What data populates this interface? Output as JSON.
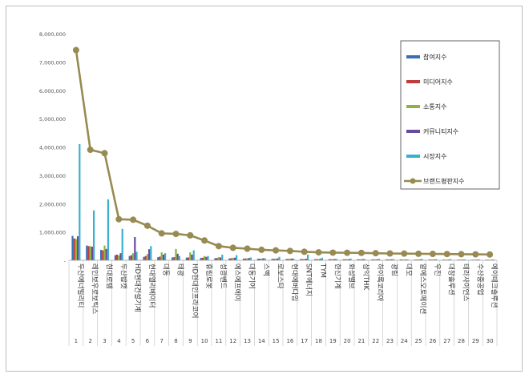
{
  "chart_data": {
    "type": "bar",
    "categories": [
      "두산에너빌리티",
      "레인보우로보틱스",
      "현대로템",
      "두산밥캣",
      "HD현대건설기계",
      "현대엘리베이터",
      "대동",
      "태광",
      "HD현대인프라코어",
      "휴림로봇",
      "성광벤드",
      "에스에프에이",
      "대동기어",
      "스맥",
      "로보스타",
      "현대에버다임",
      "SNT에너지",
      "TYM",
      "한신기계",
      "화성밸브",
      "삼익THK",
      "하이록코리아",
      "광림",
      "대모",
      "알에스오토메이션",
      "우진",
      "대창솔루션",
      "테라사이언스",
      "수산중공업",
      "에이테크솔루션"
    ],
    "ranks": [
      "1",
      "2",
      "3",
      "4",
      "5",
      "6",
      "7",
      "8",
      "9",
      "10",
      "11",
      "12",
      "13",
      "14",
      "15",
      "16",
      "17",
      "18",
      "19",
      "20",
      "21",
      "22",
      "23",
      "24",
      "25",
      "26",
      "27",
      "28",
      "29",
      "30"
    ],
    "y_ticks": [
      "-",
      "1,000,000",
      "2,000,000",
      "3,000,000",
      "4,000,000",
      "5,000,000",
      "6,000,000",
      "7,000,000",
      "8,000,000"
    ],
    "ylim": [
      0,
      8000000
    ],
    "series": [
      {
        "name": "참여지수",
        "color": "#3a6fb8",
        "values": [
          860000,
          520000,
          370000,
          180000,
          150000,
          120000,
          110000,
          100000,
          95000,
          85000,
          75000,
          65000,
          60000,
          55000,
          50000,
          45000,
          45000,
          40000,
          40000,
          35000,
          35000,
          30000,
          30000,
          30000,
          25000,
          25000,
          25000,
          20000,
          20000,
          20000
        ]
      },
      {
        "name": "미디어지수",
        "color": "#c23b3b",
        "values": [
          770000,
          500000,
          350000,
          200000,
          180000,
          150000,
          130000,
          110000,
          100000,
          90000,
          80000,
          70000,
          60000,
          55000,
          50000,
          45000,
          40000,
          40000,
          35000,
          35000,
          30000,
          30000,
          30000,
          25000,
          25000,
          25000,
          20000,
          20000,
          20000,
          20000
        ]
      },
      {
        "name": "소통지수",
        "color": "#8db43e",
        "values": [
          750000,
          500000,
          520000,
          170000,
          250000,
          220000,
          280000,
          400000,
          280000,
          150000,
          110000,
          90000,
          70000,
          60000,
          60000,
          55000,
          50000,
          45000,
          45000,
          40000,
          40000,
          35000,
          35000,
          30000,
          30000,
          30000,
          25000,
          25000,
          25000,
          20000
        ]
      },
      {
        "name": "커뮤니티지수",
        "color": "#6a4a9a",
        "values": [
          850000,
          480000,
          400000,
          250000,
          820000,
          390000,
          200000,
          230000,
          200000,
          120000,
          100000,
          90000,
          80000,
          70000,
          65000,
          60000,
          55000,
          50000,
          45000,
          40000,
          40000,
          35000,
          35000,
          30000,
          30000,
          30000,
          25000,
          25000,
          25000,
          20000
        ]
      },
      {
        "name": "시장지수",
        "color": "#3ab0cf",
        "values": [
          4100000,
          1760000,
          2150000,
          1110000,
          300000,
          500000,
          250000,
          150000,
          350000,
          150000,
          200000,
          180000,
          100000,
          70000,
          120000,
          60000,
          200000,
          90000,
          50000,
          60000,
          40000,
          50000,
          40000,
          30000,
          50000,
          40000,
          40000,
          30000,
          30000,
          30000
        ]
      }
    ],
    "line_series": {
      "name": "브랜드평판지수",
      "color": "#978a52",
      "values": [
        7420000,
        3900000,
        3780000,
        1450000,
        1430000,
        1220000,
        950000,
        930000,
        880000,
        700000,
        500000,
        440000,
        410000,
        370000,
        350000,
        330000,
        300000,
        280000,
        270000,
        265000,
        260000,
        250000,
        240000,
        235000,
        230000,
        225000,
        220000,
        215000,
        210000,
        205000
      ]
    },
    "grid": false,
    "legend_position": "right"
  }
}
